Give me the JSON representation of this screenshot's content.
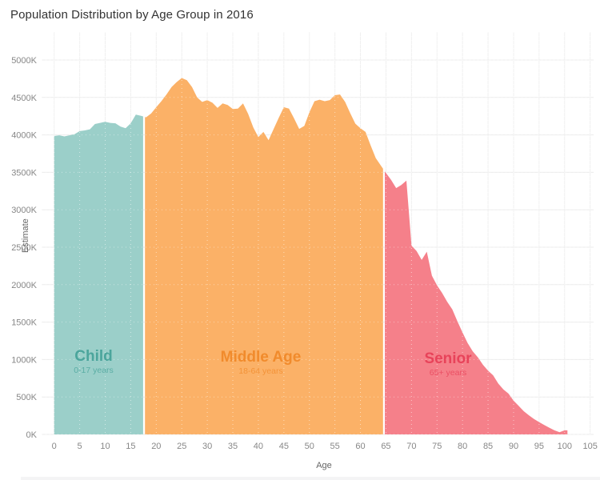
{
  "title": "Population Distribution by Age Group in 2016",
  "x_axis": {
    "label": "Age",
    "tick_values": [
      0,
      5,
      10,
      15,
      20,
      25,
      30,
      35,
      40,
      45,
      50,
      55,
      60,
      65,
      70,
      75,
      80,
      85,
      90,
      95,
      100,
      105
    ],
    "tick_labels": [
      "0",
      "5",
      "10",
      "15",
      "20",
      "25",
      "30",
      "35",
      "40",
      "45",
      "50",
      "55",
      "60",
      "65",
      "70",
      "75",
      "80",
      "85",
      "90",
      "95",
      "100",
      "105"
    ]
  },
  "y_axis": {
    "label": "Estimate",
    "tick_values": [
      0,
      500,
      1000,
      1500,
      2000,
      2500,
      3000,
      3500,
      4000,
      4500,
      5000
    ],
    "tick_labels": [
      "0K",
      "500K",
      "1000K",
      "1500K",
      "2000K",
      "2500K",
      "3000K",
      "3500K",
      "4000K",
      "4500K",
      "5000K"
    ]
  },
  "chart_data": {
    "type": "area",
    "title": "Population Distribution by Age Group in 2016",
    "xlabel": "Age",
    "ylabel": "Estimate",
    "xlim": [
      0,
      105
    ],
    "ylim": [
      0,
      5000
    ],
    "unit": "K (thousands of people) per single year of age",
    "grid": true,
    "legend": "none (labels drawn inside areas)",
    "series": [
      {
        "name": "Child",
        "range_label": "0-17 years",
        "start_age": 0,
        "fill": "#9BCFC9",
        "label_color": "#4BA59C",
        "values": [
          3985,
          3995,
          3980,
          3995,
          4010,
          4050,
          4060,
          4075,
          4145,
          4160,
          4175,
          4160,
          4155,
          4110,
          4090,
          4155,
          4270,
          4255
        ]
      },
      {
        "name": "Middle Age",
        "range_label": "18-64 years",
        "start_age": 18,
        "fill": "#FBB167",
        "label_color": "#F18B2C",
        "values": [
          4235,
          4285,
          4370,
          4450,
          4540,
          4640,
          4705,
          4760,
          4730,
          4640,
          4500,
          4440,
          4465,
          4430,
          4360,
          4420,
          4400,
          4345,
          4350,
          4420,
          4280,
          4100,
          3970,
          4040,
          3930,
          4080,
          4230,
          4370,
          4350,
          4220,
          4080,
          4120,
          4300,
          4450,
          4470,
          4450,
          4465,
          4530,
          4540,
          4440,
          4290,
          4150,
          4090,
          4040,
          3860,
          3690,
          3590
        ]
      },
      {
        "name": "Senior",
        "range_label": "65+ years",
        "start_age": 65,
        "fill": "#F5808A",
        "label_color": "#E8435A",
        "values": [
          3490,
          3400,
          3290,
          3330,
          3390,
          2520,
          2450,
          2330,
          2440,
          2120,
          1990,
          1890,
          1770,
          1670,
          1510,
          1360,
          1220,
          1110,
          1030,
          930,
          850,
          790,
          680,
          600,
          545,
          450,
          380,
          310,
          255,
          205,
          165,
          125,
          90,
          55,
          30,
          55
        ]
      }
    ]
  },
  "colors": {
    "background": "#ffffff",
    "title_text": "#333333",
    "axis_text": "#878787",
    "axis_title_text": "#666666",
    "gridline_h": "#ebebeb",
    "gridline_v": "#f0f0f0"
  }
}
